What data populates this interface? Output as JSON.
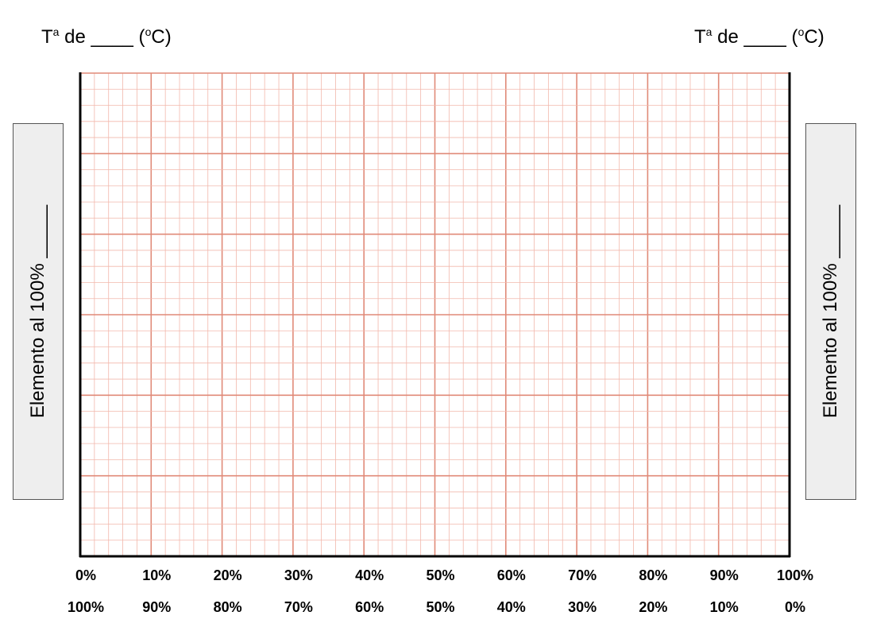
{
  "header": {
    "left_temp": {
      "prefix": "T",
      "sup": "a",
      "middle": " de ____ (",
      "unit_sup": "o",
      "suffix": "C)"
    },
    "right_temp": {
      "prefix": "T",
      "sup": "a",
      "middle": " de ____ (",
      "unit_sup": "o",
      "suffix": "C)"
    }
  },
  "side_labels": {
    "left": "Elemento al 100% _____",
    "right": "Elemento al 100% _____"
  },
  "axis": {
    "top_row": [
      "0%",
      "10%",
      "20%",
      "30%",
      "40%",
      "50%",
      "60%",
      "70%",
      "80%",
      "90%",
      "100%"
    ],
    "bottom_row": [
      "100%",
      "90%",
      "80%",
      "70%",
      "60%",
      "50%",
      "40%",
      "30%",
      "20%",
      "10%",
      "0%"
    ]
  },
  "colors": {
    "grid_minor": "#f2b8ac",
    "grid_major": "#e08a78",
    "axis": "#000000",
    "side_box": "#eeeeee"
  }
}
